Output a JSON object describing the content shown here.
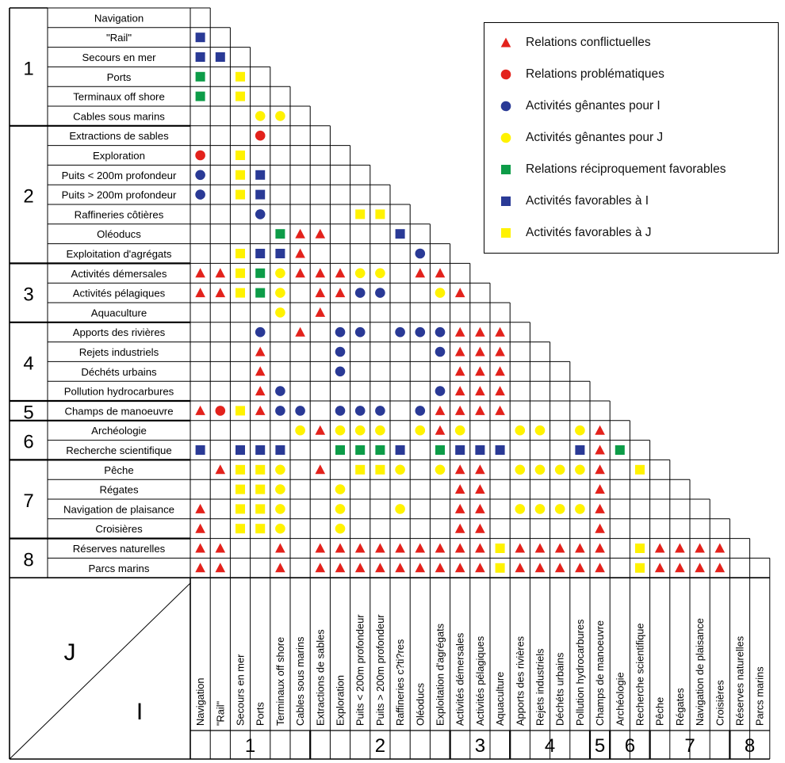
{
  "colors": {
    "red": "#e3221c",
    "blue": "#2a3a96",
    "yellow": "#fff200",
    "green": "#0d9c48",
    "line": "#000000"
  },
  "legend": [
    {
      "sym": "tri",
      "color": "red",
      "label": "Relations conflictuelles"
    },
    {
      "sym": "circ",
      "color": "red",
      "label": "Relations problématiques"
    },
    {
      "sym": "circ",
      "color": "blue",
      "label": "Activités gênantes pour I"
    },
    {
      "sym": "circ",
      "color": "yellow",
      "label": "Activités gênantes pour J"
    },
    {
      "sym": "sq",
      "color": "green",
      "label": "Relations réciproquement favorables"
    },
    {
      "sym": "sq",
      "color": "blue",
      "label": "Activités favorables à I"
    },
    {
      "sym": "sq",
      "color": "yellow",
      "label": "Activités favorables à J"
    }
  ],
  "rows": [
    "Navigation",
    "\"Rail\"",
    "Secours en mer",
    "Ports",
    "Terminaux off shore",
    "Cables sous marins",
    "Extractions de sables",
    "Exploration",
    "Puits < 200m profondeur",
    "Puits > 200m profondeur",
    "Raffineries côtières",
    "Oléoducs",
    "Exploitation d'agrégats",
    "Activités démersales",
    "Activités pélagiques",
    "Aquaculture",
    "Apports des rivières",
    "Rejets industriels",
    "Déchéts urbains",
    "Pollution hydrocarbures",
    "Champs de manoeuvre",
    "Archéologie",
    "Recherche scientifique",
    "Pêche",
    "Régates",
    "Navigation de plaisance",
    "Croisières",
    "Réserves naturelles",
    "Parcs marins"
  ],
  "columns": [
    "Navigation",
    "\"Rail\"",
    "Secours en mer",
    "Ports",
    "Terminaux off shore",
    "Cables sous marins",
    "Extractions de sables",
    "Exploration",
    "Puits < 200m profondeur",
    "Puits > 200m profondeur",
    "Raffineries c?ti?res",
    "Oléoducs",
    "Exploitation d'agrégats",
    "Activités démersales",
    "Activités pélagiques",
    "Aquaculture",
    "Apports des rivières",
    "Rejets industriels",
    "Déchéts urbains",
    "Pollution hydrocarbures",
    "Champs de manoeuvre",
    "Archéologie",
    "Recherche scientifique",
    "Pêche",
    "Régates",
    "Navigation de plaisance",
    "Croisières",
    "Réserves naturelles",
    "Parcs marins"
  ],
  "groups": [
    {
      "label": "1",
      "start": 0,
      "end": 5
    },
    {
      "label": "2",
      "start": 6,
      "end": 12
    },
    {
      "label": "3",
      "start": 13,
      "end": 15
    },
    {
      "label": "4",
      "start": 16,
      "end": 19
    },
    {
      "label": "5",
      "start": 20,
      "end": 20
    },
    {
      "label": "6",
      "start": 21,
      "end": 22
    },
    {
      "label": "7",
      "start": 23,
      "end": 26
    },
    {
      "label": "8",
      "start": 27,
      "end": 28
    }
  ],
  "axis_labels": {
    "j": "J",
    "i": "I"
  },
  "cells": [
    [
      1,
      0,
      "sq",
      "blue"
    ],
    [
      2,
      0,
      "sq",
      "blue"
    ],
    [
      2,
      1,
      "sq",
      "blue"
    ],
    [
      3,
      0,
      "sq",
      "green"
    ],
    [
      3,
      2,
      "sq",
      "yellow"
    ],
    [
      4,
      0,
      "sq",
      "green"
    ],
    [
      4,
      2,
      "sq",
      "yellow"
    ],
    [
      5,
      3,
      "circ",
      "yellow"
    ],
    [
      5,
      4,
      "circ",
      "yellow"
    ],
    [
      6,
      3,
      "circ",
      "red"
    ],
    [
      7,
      0,
      "circ",
      "red"
    ],
    [
      7,
      2,
      "sq",
      "yellow"
    ],
    [
      8,
      0,
      "circ",
      "blue"
    ],
    [
      8,
      2,
      "sq",
      "yellow"
    ],
    [
      8,
      3,
      "sq",
      "blue"
    ],
    [
      9,
      0,
      "circ",
      "blue"
    ],
    [
      9,
      2,
      "sq",
      "yellow"
    ],
    [
      9,
      3,
      "sq",
      "blue"
    ],
    [
      10,
      3,
      "circ",
      "blue"
    ],
    [
      10,
      8,
      "sq",
      "yellow"
    ],
    [
      10,
      9,
      "sq",
      "yellow"
    ],
    [
      11,
      4,
      "sq",
      "green"
    ],
    [
      11,
      5,
      "tri",
      "red"
    ],
    [
      11,
      6,
      "tri",
      "red"
    ],
    [
      11,
      10,
      "sq",
      "blue"
    ],
    [
      12,
      2,
      "sq",
      "yellow"
    ],
    [
      12,
      3,
      "sq",
      "blue"
    ],
    [
      12,
      4,
      "sq",
      "blue"
    ],
    [
      12,
      5,
      "tri",
      "red"
    ],
    [
      12,
      11,
      "circ",
      "blue"
    ],
    [
      13,
      0,
      "tri",
      "red"
    ],
    [
      13,
      1,
      "tri",
      "red"
    ],
    [
      13,
      2,
      "sq",
      "yellow"
    ],
    [
      13,
      3,
      "sq",
      "green"
    ],
    [
      13,
      4,
      "circ",
      "yellow"
    ],
    [
      13,
      5,
      "tri",
      "red"
    ],
    [
      13,
      6,
      "tri",
      "red"
    ],
    [
      13,
      7,
      "tri",
      "red"
    ],
    [
      13,
      8,
      "circ",
      "yellow"
    ],
    [
      13,
      9,
      "circ",
      "yellow"
    ],
    [
      13,
      11,
      "tri",
      "red"
    ],
    [
      13,
      12,
      "tri",
      "red"
    ],
    [
      14,
      0,
      "tri",
      "red"
    ],
    [
      14,
      1,
      "tri",
      "red"
    ],
    [
      14,
      2,
      "sq",
      "yellow"
    ],
    [
      14,
      3,
      "sq",
      "green"
    ],
    [
      14,
      4,
      "circ",
      "yellow"
    ],
    [
      14,
      6,
      "tri",
      "red"
    ],
    [
      14,
      7,
      "tri",
      "red"
    ],
    [
      14,
      8,
      "circ",
      "blue"
    ],
    [
      14,
      9,
      "circ",
      "blue"
    ],
    [
      14,
      12,
      "circ",
      "yellow"
    ],
    [
      14,
      13,
      "tri",
      "red"
    ],
    [
      15,
      4,
      "circ",
      "yellow"
    ],
    [
      15,
      6,
      "tri",
      "red"
    ],
    [
      16,
      3,
      "circ",
      "blue"
    ],
    [
      16,
      5,
      "tri",
      "red"
    ],
    [
      16,
      7,
      "circ",
      "blue"
    ],
    [
      16,
      8,
      "circ",
      "blue"
    ],
    [
      16,
      10,
      "circ",
      "blue"
    ],
    [
      16,
      11,
      "circ",
      "blue"
    ],
    [
      16,
      12,
      "circ",
      "blue"
    ],
    [
      16,
      13,
      "tri",
      "red"
    ],
    [
      16,
      14,
      "tri",
      "red"
    ],
    [
      16,
      15,
      "tri",
      "red"
    ],
    [
      17,
      3,
      "tri",
      "red"
    ],
    [
      17,
      7,
      "circ",
      "blue"
    ],
    [
      17,
      12,
      "circ",
      "blue"
    ],
    [
      17,
      13,
      "tri",
      "red"
    ],
    [
      17,
      14,
      "tri",
      "red"
    ],
    [
      17,
      15,
      "tri",
      "red"
    ],
    [
      18,
      3,
      "tri",
      "red"
    ],
    [
      18,
      7,
      "circ",
      "blue"
    ],
    [
      18,
      13,
      "tri",
      "red"
    ],
    [
      18,
      14,
      "tri",
      "red"
    ],
    [
      18,
      15,
      "tri",
      "red"
    ],
    [
      19,
      3,
      "tri",
      "red"
    ],
    [
      19,
      4,
      "circ",
      "blue"
    ],
    [
      19,
      12,
      "circ",
      "blue"
    ],
    [
      19,
      13,
      "tri",
      "red"
    ],
    [
      19,
      14,
      "tri",
      "red"
    ],
    [
      19,
      15,
      "tri",
      "red"
    ],
    [
      20,
      0,
      "tri",
      "red"
    ],
    [
      20,
      1,
      "circ",
      "red"
    ],
    [
      20,
      2,
      "sq",
      "yellow"
    ],
    [
      20,
      3,
      "tri",
      "red"
    ],
    [
      20,
      4,
      "circ",
      "blue"
    ],
    [
      20,
      5,
      "circ",
      "blue"
    ],
    [
      20,
      7,
      "circ",
      "blue"
    ],
    [
      20,
      8,
      "circ",
      "blue"
    ],
    [
      20,
      9,
      "circ",
      "blue"
    ],
    [
      20,
      11,
      "circ",
      "blue"
    ],
    [
      20,
      12,
      "tri",
      "red"
    ],
    [
      20,
      13,
      "tri",
      "red"
    ],
    [
      20,
      14,
      "tri",
      "red"
    ],
    [
      20,
      15,
      "tri",
      "red"
    ],
    [
      21,
      5,
      "circ",
      "yellow"
    ],
    [
      21,
      6,
      "tri",
      "red"
    ],
    [
      21,
      7,
      "circ",
      "yellow"
    ],
    [
      21,
      8,
      "circ",
      "yellow"
    ],
    [
      21,
      9,
      "circ",
      "yellow"
    ],
    [
      21,
      11,
      "circ",
      "yellow"
    ],
    [
      21,
      12,
      "tri",
      "red"
    ],
    [
      21,
      13,
      "circ",
      "yellow"
    ],
    [
      21,
      16,
      "circ",
      "yellow"
    ],
    [
      21,
      17,
      "circ",
      "yellow"
    ],
    [
      21,
      19,
      "circ",
      "yellow"
    ],
    [
      21,
      20,
      "tri",
      "red"
    ],
    [
      22,
      0,
      "sq",
      "blue"
    ],
    [
      22,
      2,
      "sq",
      "blue"
    ],
    [
      22,
      3,
      "sq",
      "blue"
    ],
    [
      22,
      4,
      "sq",
      "blue"
    ],
    [
      22,
      7,
      "sq",
      "green"
    ],
    [
      22,
      8,
      "sq",
      "green"
    ],
    [
      22,
      9,
      "sq",
      "green"
    ],
    [
      22,
      10,
      "sq",
      "blue"
    ],
    [
      22,
      12,
      "sq",
      "green"
    ],
    [
      22,
      13,
      "sq",
      "blue"
    ],
    [
      22,
      14,
      "sq",
      "blue"
    ],
    [
      22,
      15,
      "sq",
      "blue"
    ],
    [
      22,
      19,
      "sq",
      "blue"
    ],
    [
      22,
      20,
      "tri",
      "red"
    ],
    [
      22,
      21,
      "sq",
      "green"
    ],
    [
      23,
      1,
      "tri",
      "red"
    ],
    [
      23,
      2,
      "sq",
      "yellow"
    ],
    [
      23,
      3,
      "sq",
      "yellow"
    ],
    [
      23,
      4,
      "circ",
      "yellow"
    ],
    [
      23,
      6,
      "tri",
      "red"
    ],
    [
      23,
      8,
      "sq",
      "yellow"
    ],
    [
      23,
      9,
      "sq",
      "yellow"
    ],
    [
      23,
      10,
      "circ",
      "yellow"
    ],
    [
      23,
      12,
      "circ",
      "yellow"
    ],
    [
      23,
      13,
      "tri",
      "red"
    ],
    [
      23,
      14,
      "tri",
      "red"
    ],
    [
      23,
      16,
      "circ",
      "yellow"
    ],
    [
      23,
      17,
      "circ",
      "yellow"
    ],
    [
      23,
      18,
      "circ",
      "yellow"
    ],
    [
      23,
      19,
      "circ",
      "yellow"
    ],
    [
      23,
      20,
      "tri",
      "red"
    ],
    [
      23,
      22,
      "sq",
      "yellow"
    ],
    [
      24,
      2,
      "sq",
      "yellow"
    ],
    [
      24,
      3,
      "sq",
      "yellow"
    ],
    [
      24,
      4,
      "circ",
      "yellow"
    ],
    [
      24,
      7,
      "circ",
      "yellow"
    ],
    [
      24,
      13,
      "tri",
      "red"
    ],
    [
      24,
      14,
      "tri",
      "red"
    ],
    [
      24,
      20,
      "tri",
      "red"
    ],
    [
      25,
      0,
      "tri",
      "red"
    ],
    [
      25,
      2,
      "sq",
      "yellow"
    ],
    [
      25,
      3,
      "sq",
      "yellow"
    ],
    [
      25,
      4,
      "circ",
      "yellow"
    ],
    [
      25,
      7,
      "circ",
      "yellow"
    ],
    [
      25,
      10,
      "circ",
      "yellow"
    ],
    [
      25,
      13,
      "tri",
      "red"
    ],
    [
      25,
      14,
      "tri",
      "red"
    ],
    [
      25,
      16,
      "circ",
      "yellow"
    ],
    [
      25,
      17,
      "circ",
      "yellow"
    ],
    [
      25,
      18,
      "circ",
      "yellow"
    ],
    [
      25,
      19,
      "circ",
      "yellow"
    ],
    [
      25,
      20,
      "tri",
      "red"
    ],
    [
      26,
      0,
      "tri",
      "red"
    ],
    [
      26,
      2,
      "sq",
      "yellow"
    ],
    [
      26,
      3,
      "sq",
      "yellow"
    ],
    [
      26,
      4,
      "circ",
      "yellow"
    ],
    [
      26,
      7,
      "circ",
      "yellow"
    ],
    [
      26,
      13,
      "tri",
      "red"
    ],
    [
      26,
      14,
      "tri",
      "red"
    ],
    [
      26,
      20,
      "tri",
      "red"
    ],
    [
      27,
      0,
      "tri",
      "red"
    ],
    [
      27,
      1,
      "tri",
      "red"
    ],
    [
      27,
      4,
      "tri",
      "red"
    ],
    [
      27,
      6,
      "tri",
      "red"
    ],
    [
      27,
      7,
      "tri",
      "red"
    ],
    [
      27,
      8,
      "tri",
      "red"
    ],
    [
      27,
      9,
      "tri",
      "red"
    ],
    [
      27,
      10,
      "tri",
      "red"
    ],
    [
      27,
      11,
      "tri",
      "red"
    ],
    [
      27,
      12,
      "tri",
      "red"
    ],
    [
      27,
      13,
      "tri",
      "red"
    ],
    [
      27,
      14,
      "tri",
      "red"
    ],
    [
      27,
      15,
      "sq",
      "yellow"
    ],
    [
      27,
      16,
      "tri",
      "red"
    ],
    [
      27,
      17,
      "tri",
      "red"
    ],
    [
      27,
      18,
      "tri",
      "red"
    ],
    [
      27,
      19,
      "tri",
      "red"
    ],
    [
      27,
      20,
      "tri",
      "red"
    ],
    [
      27,
      22,
      "sq",
      "yellow"
    ],
    [
      27,
      23,
      "tri",
      "red"
    ],
    [
      27,
      24,
      "tri",
      "red"
    ],
    [
      27,
      25,
      "tri",
      "red"
    ],
    [
      27,
      26,
      "tri",
      "red"
    ],
    [
      28,
      0,
      "tri",
      "red"
    ],
    [
      28,
      1,
      "tri",
      "red"
    ],
    [
      28,
      4,
      "tri",
      "red"
    ],
    [
      28,
      6,
      "tri",
      "red"
    ],
    [
      28,
      7,
      "tri",
      "red"
    ],
    [
      28,
      8,
      "tri",
      "red"
    ],
    [
      28,
      9,
      "tri",
      "red"
    ],
    [
      28,
      10,
      "tri",
      "red"
    ],
    [
      28,
      11,
      "tri",
      "red"
    ],
    [
      28,
      12,
      "tri",
      "red"
    ],
    [
      28,
      13,
      "tri",
      "red"
    ],
    [
      28,
      14,
      "tri",
      "red"
    ],
    [
      28,
      15,
      "sq",
      "yellow"
    ],
    [
      28,
      16,
      "tri",
      "red"
    ],
    [
      28,
      17,
      "tri",
      "red"
    ],
    [
      28,
      18,
      "tri",
      "red"
    ],
    [
      28,
      19,
      "tri",
      "red"
    ],
    [
      28,
      20,
      "tri",
      "red"
    ],
    [
      28,
      22,
      "sq",
      "yellow"
    ],
    [
      28,
      23,
      "tri",
      "red"
    ],
    [
      28,
      24,
      "tri",
      "red"
    ],
    [
      28,
      25,
      "tri",
      "red"
    ],
    [
      28,
      26,
      "tri",
      "red"
    ]
  ]
}
